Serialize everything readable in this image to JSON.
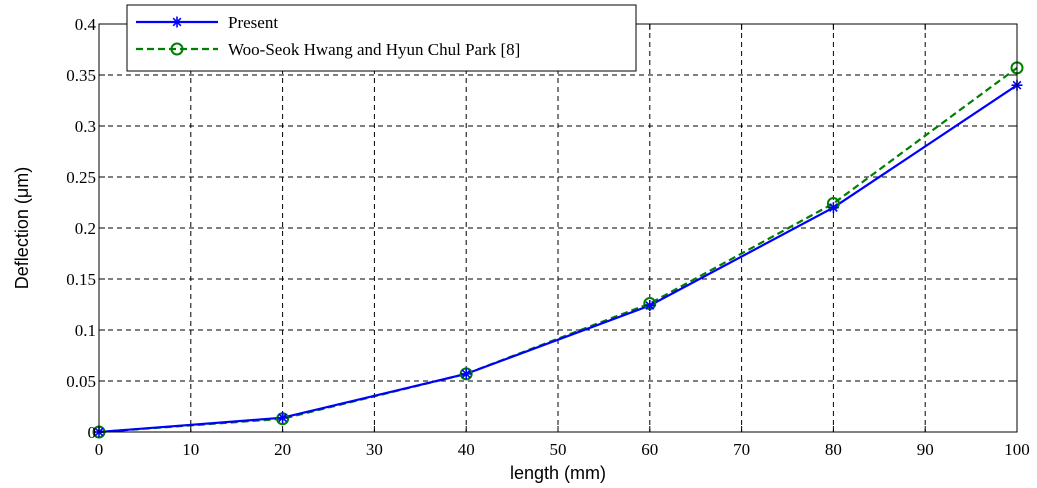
{
  "chart_data": {
    "type": "line",
    "xlabel": "length (mm)",
    "ylabel": "Deflection (μm)",
    "xlim": [
      0,
      100
    ],
    "ylim": [
      0,
      0.4
    ],
    "xticks": [
      0,
      10,
      20,
      30,
      40,
      50,
      60,
      70,
      80,
      90,
      100
    ],
    "yticks": [
      0,
      0.05,
      0.1,
      0.15,
      0.2,
      0.25,
      0.3,
      0.35,
      0.4
    ],
    "xtick_labels": [
      "0",
      "10",
      "20",
      "30",
      "40",
      "50",
      "60",
      "70",
      "80",
      "90",
      "100"
    ],
    "ytick_labels": [
      "0",
      "0.05",
      "0.1",
      "0.15",
      "0.2",
      "0.25",
      "0.3",
      "0.35",
      "0.4"
    ],
    "grid": true,
    "legend_position": "top-left",
    "series": [
      {
        "name": "Present",
        "x": [
          0,
          20,
          40,
          60,
          80,
          100
        ],
        "y": [
          0,
          0.014,
          0.057,
          0.124,
          0.22,
          0.34
        ],
        "color": "#0000ff",
        "line_style": "solid",
        "marker": "star"
      },
      {
        "name": "Woo-Seok Hwang and Hyun Chul Park [8]",
        "x": [
          0,
          20,
          40,
          60,
          80,
          100
        ],
        "y": [
          0,
          0.013,
          0.057,
          0.126,
          0.224,
          0.357
        ],
        "color": "#008000",
        "line_style": "dashed",
        "marker": "circle"
      }
    ]
  }
}
